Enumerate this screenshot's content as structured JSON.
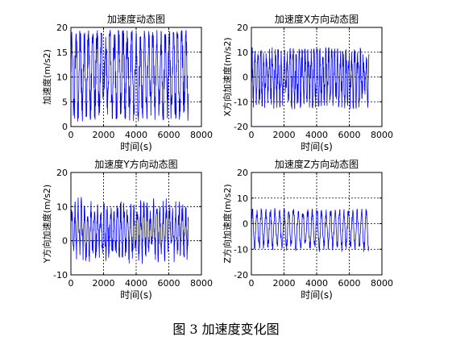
{
  "caption": "图 3  加速度变化图",
  "colors": {
    "line": "#0000ff",
    "axis": "#000000",
    "grid": "#000000",
    "background": "#ffffff"
  },
  "chart_data": [
    {
      "type": "line",
      "title": "加速度动态图",
      "xlabel": "时间(s)",
      "ylabel": "加速度(m/s2)",
      "xlim": [
        0,
        8000
      ],
      "ylim": [
        0,
        20
      ],
      "xticks": [
        0,
        2000,
        4000,
        6000,
        8000
      ],
      "yticks": [
        0,
        5,
        10,
        15,
        20
      ],
      "grid": true,
      "series": [
        {
          "x_range": [
            0,
            7200
          ],
          "mean": 11,
          "amplitude": 8,
          "period": 260,
          "spikiness": 0.35,
          "ymin": 1,
          "ymax": 19.5
        }
      ]
    },
    {
      "type": "line",
      "title": "加速度X方向动态图",
      "xlabel": "时间(s)",
      "ylabel": "X方向加速度(m/s2)",
      "xlim": [
        0,
        8000
      ],
      "ylim": [
        -20,
        20
      ],
      "xticks": [
        0,
        2000,
        4000,
        6000,
        8000
      ],
      "yticks": [
        -20,
        -10,
        0,
        10,
        20
      ],
      "grid": true,
      "series": [
        {
          "x_range": [
            0,
            7200
          ],
          "mean": 0,
          "amplitude": 9,
          "period": 180,
          "spikiness": 0.45,
          "ymin": -13,
          "ymax": 12
        }
      ]
    },
    {
      "type": "line",
      "title": "加速度Y方向动态图",
      "xlabel": "时间(s)",
      "ylabel": "Y方向加速度(m/s2)",
      "xlim": [
        0,
        8000
      ],
      "ylim": [
        -10,
        20
      ],
      "xticks": [
        0,
        2000,
        4000,
        6000,
        8000
      ],
      "yticks": [
        -10,
        0,
        10,
        20
      ],
      "grid": true,
      "series": [
        {
          "x_range": [
            0,
            7200
          ],
          "mean": 3,
          "amplitude": 6,
          "period": 200,
          "spikiness": 0.4,
          "ymin": -9,
          "ymax": 13
        }
      ]
    },
    {
      "type": "line",
      "title": "加速度Z方向动态图",
      "xlabel": "时间(s)",
      "ylabel": "Z方向加速度(m/s2)",
      "xlim": [
        0,
        8000
      ],
      "ylim": [
        -20,
        20
      ],
      "xticks": [
        0,
        2000,
        4000,
        6000,
        8000
      ],
      "yticks": [
        -20,
        -10,
        0,
        10,
        20
      ],
      "grid": true,
      "series": [
        {
          "x_range": [
            0,
            7200
          ],
          "mean": -2,
          "amplitude": 7,
          "period": 280,
          "spikiness": 0.2,
          "ymin": -12,
          "ymax": 6
        }
      ]
    }
  ]
}
